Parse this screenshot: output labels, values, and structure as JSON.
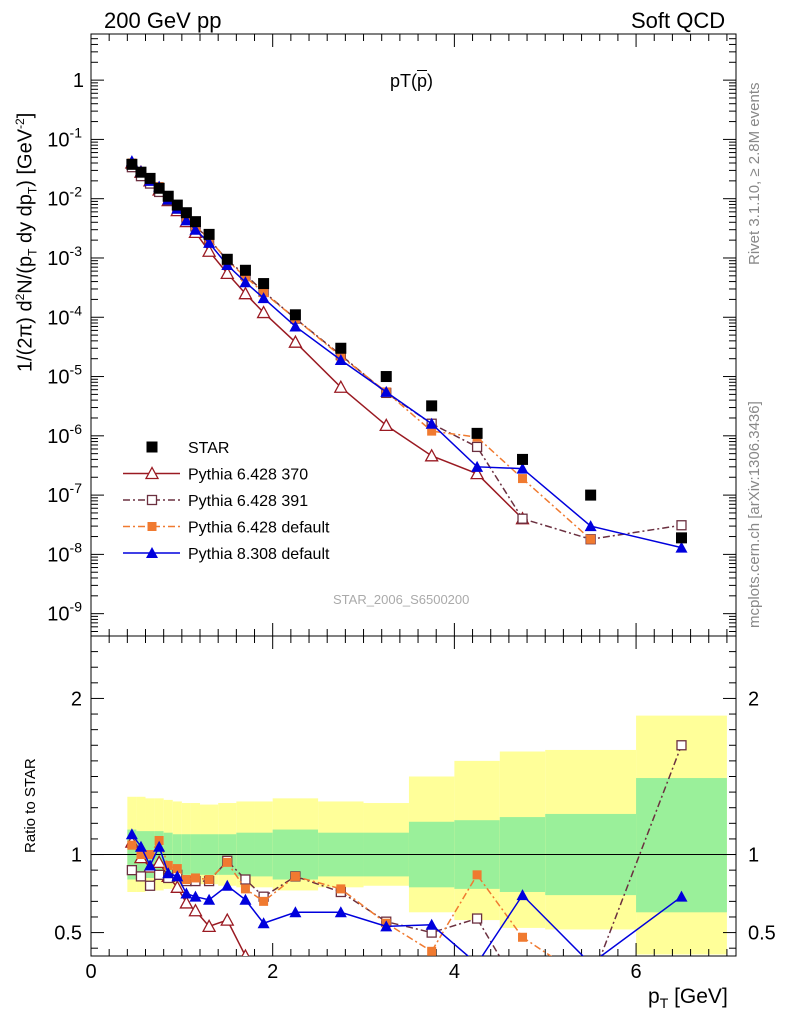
{
  "header": {
    "left": "200 GeV pp",
    "right": "Soft QCD"
  },
  "side_labels": {
    "rivet": "Rivet 3.1.10, ≥ 2.8M events",
    "mcplots": "mcplots.cern.ch [arXiv:1306.3436]"
  },
  "watermark": "STAR_2006_S6500200",
  "plot_title": "pT(p̅)",
  "axis": {
    "ylabel_main": "1/(2π) d²N/(p_T dy dp_T) [GeV⁻²]",
    "ylabel_ratio": "Ratio to STAR",
    "xlabel": "p_T [GeV]"
  },
  "chart_data": {
    "type": "scatter",
    "title": "pT(p̅)",
    "xlabel": "p_T [GeV]",
    "ylabel": "1/(2π) d²N/(p_T dy dp_T) [GeV^-2]",
    "xlim": [
      0,
      7.1
    ],
    "ylim": [
      4.2e-10,
      6
    ],
    "yscale": "log",
    "x_ticks": [
      "0",
      "2",
      "4",
      "6"
    ],
    "y_ticks": [
      "10^-9",
      "10^-8",
      "10^-7",
      "10^-6",
      "10^-5",
      "10^-4",
      "10^-3",
      "10^-2",
      "10^-1",
      "1"
    ],
    "ratio_ylim": [
      0.35,
      2.4
    ],
    "ratio_ticks": [
      "0.5",
      "1",
      "2"
    ],
    "legend_position": "bottom-left",
    "reference": {
      "name": "STAR",
      "color": "#000000",
      "x": [
        0.45,
        0.55,
        0.65,
        0.75,
        0.85,
        0.95,
        1.05,
        1.15,
        1.3,
        1.5,
        1.7,
        1.9,
        2.25,
        2.75,
        3.25,
        3.75,
        4.25,
        4.75,
        5.5,
        6.5
      ],
      "y": [
        0.038,
        0.028,
        0.022,
        0.015,
        0.011,
        0.0078,
        0.0058,
        0.0041,
        0.0025,
        0.00095,
        0.00062,
        0.00037,
        0.00011,
        3e-05,
        1e-05,
        3.2e-06,
        1.1e-06,
        4e-07,
        1e-07,
        1.9e-08
      ]
    },
    "series": [
      {
        "name": "Pythia 6.428 370",
        "color": "#9a1a22",
        "marker": "open-triangle",
        "dash": "",
        "y": [
          0.04,
          0.028,
          0.02,
          0.014,
          0.0093,
          0.0063,
          0.0041,
          0.0027,
          0.0013,
          0.00055,
          0.00025,
          0.00012,
          3.8e-05,
          6.6e-06,
          1.5e-06,
          4.6e-07,
          2.3e-07,
          4e-08,
          null,
          null
        ],
        "ratio": [
          1.08,
          0.98,
          0.92,
          0.95,
          0.86,
          0.79,
          0.69,
          0.64,
          0.54,
          0.58,
          0.35,
          0.22,
          null,
          null,
          null,
          null,
          null,
          null,
          null,
          null
        ]
      },
      {
        "name": "Pythia 6.428 391",
        "color": "#6b3040",
        "marker": "open-square",
        "dash": "7,3,2,3",
        "y": [
          0.034,
          0.024,
          0.018,
          0.013,
          0.0093,
          0.0068,
          0.0048,
          0.0034,
          0.0021,
          0.00091,
          0.00052,
          0.00027,
          9.5e-05,
          2.3e-05,
          5.3e-06,
          1.6e-06,
          6.5e-07,
          4e-08,
          1.8e-08,
          3.1e-08
        ],
        "ratio": [
          0.9,
          0.86,
          0.8,
          0.87,
          0.85,
          0.87,
          0.83,
          0.83,
          0.83,
          0.96,
          0.84,
          0.73,
          0.86,
          0.76,
          0.57,
          0.5,
          0.59,
          0.1,
          0.18,
          1.7
        ]
      },
      {
        "name": "Pythia 6.428 default",
        "color": "#f07a30",
        "marker": "filled-square",
        "dash": "7,3,2,3",
        "y": [
          0.04,
          0.028,
          0.022,
          0.016,
          0.01,
          0.0071,
          0.0049,
          0.0035,
          0.0021,
          0.0009,
          0.00048,
          0.00026,
          9.5e-05,
          2.2e-05,
          5.5e-06,
          1.2e-06,
          9.5e-07,
          1.9e-07,
          1.8e-08,
          null
        ],
        "ratio": [
          1.06,
          1.0,
          1.0,
          1.09,
          0.93,
          0.91,
          0.84,
          0.85,
          0.84,
          0.95,
          0.78,
          0.7,
          0.86,
          0.78,
          0.56,
          0.38,
          0.87,
          0.47,
          0.18,
          null
        ]
      },
      {
        "name": "Pythia 8.308 default",
        "color": "#0000dd",
        "marker": "filled-triangle",
        "dash": "",
        "y": [
          0.043,
          0.029,
          0.02,
          0.016,
          0.0097,
          0.0068,
          0.0043,
          0.003,
          0.0018,
          0.00076,
          0.00039,
          0.00021,
          7e-05,
          1.9e-05,
          5.5e-06,
          1.6e-06,
          3e-07,
          2.8e-07,
          3e-08,
          1.3e-08
        ],
        "ratio": [
          1.13,
          1.05,
          0.93,
          1.05,
          0.88,
          0.86,
          0.75,
          0.73,
          0.71,
          0.8,
          0.71,
          0.56,
          0.63,
          0.63,
          0.54,
          0.55,
          0.3,
          0.74,
          0.3,
          0.73
        ]
      }
    ],
    "ratio_bands": {
      "edges": [
        0.4,
        0.5,
        0.6,
        0.7,
        0.8,
        0.9,
        1.0,
        1.1,
        1.2,
        1.4,
        1.6,
        1.8,
        2.0,
        2.5,
        3.0,
        3.5,
        4.0,
        4.5,
        5.0,
        6.0,
        7.0
      ],
      "inner": [
        [
          0.84,
          1.16
        ],
        [
          0.85,
          1.15
        ],
        [
          0.85,
          1.15
        ],
        [
          0.85,
          1.15
        ],
        [
          0.86,
          1.14
        ],
        [
          0.87,
          1.13
        ],
        [
          0.87,
          1.13
        ],
        [
          0.87,
          1.13
        ],
        [
          0.87,
          1.13
        ],
        [
          0.87,
          1.13
        ],
        [
          0.86,
          1.14
        ],
        [
          0.86,
          1.14
        ],
        [
          0.84,
          1.16
        ],
        [
          0.86,
          1.14
        ],
        [
          0.86,
          1.14
        ],
        [
          0.79,
          1.21
        ],
        [
          0.78,
          1.22
        ],
        [
          0.76,
          1.24
        ],
        [
          0.74,
          1.26
        ],
        [
          0.63,
          1.49
        ]
      ],
      "outer": [
        [
          0.76,
          1.37
        ],
        [
          0.76,
          1.37
        ],
        [
          0.77,
          1.36
        ],
        [
          0.77,
          1.36
        ],
        [
          0.78,
          1.35
        ],
        [
          0.79,
          1.34
        ],
        [
          0.8,
          1.33
        ],
        [
          0.8,
          1.33
        ],
        [
          0.81,
          1.32
        ],
        [
          0.8,
          1.33
        ],
        [
          0.79,
          1.34
        ],
        [
          0.79,
          1.34
        ],
        [
          0.77,
          1.36
        ],
        [
          0.79,
          1.34
        ],
        [
          0.8,
          1.33
        ],
        [
          0.63,
          1.5
        ],
        [
          0.58,
          1.6
        ],
        [
          0.53,
          1.66
        ],
        [
          0.52,
          1.67
        ],
        [
          0.36,
          1.89
        ]
      ],
      "inner_color": "#9af09a",
      "outer_color": "#ffff99"
    }
  }
}
